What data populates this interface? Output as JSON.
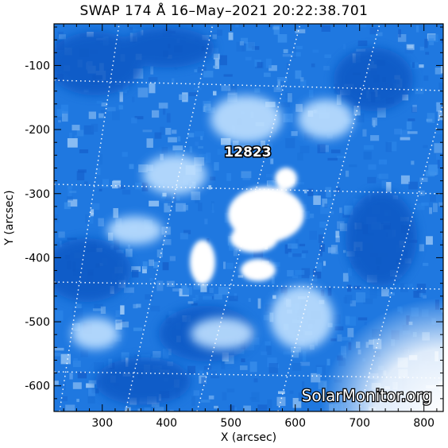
{
  "title": "SWAP 174 Å 16–May–2021 20:22:38.701",
  "watermark": "SolarMonitor.org",
  "region_label": "12823",
  "colors": {
    "base": "#1f78e0",
    "dark": "#0d55c0",
    "light": "#d8ecff",
    "grid": "#ffffff"
  },
  "chart_data": {
    "type": "heatmap",
    "xlabel": "X (arcsec)",
    "ylabel": "Y (arcsec)",
    "xlim": [
      225,
      830
    ],
    "ylim": [
      -640,
      -35
    ],
    "x_ticks": [
      300,
      400,
      500,
      600,
      700,
      800
    ],
    "y_ticks": [
      -100,
      -200,
      -300,
      -400,
      -500,
      -600
    ],
    "annotations": [
      {
        "text": "12823",
        "x": 520,
        "y": -235
      }
    ]
  }
}
